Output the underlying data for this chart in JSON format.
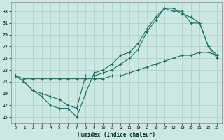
{
  "xlabel": "Humidex (Indice chaleur)",
  "bg_color": "#cce8e2",
  "grid_color": "#aacfc8",
  "line_color": "#1a7060",
  "xlim": [
    -0.5,
    23.5
  ],
  "ylim": [
    14.0,
    34.5
  ],
  "xticks": [
    0,
    1,
    2,
    3,
    4,
    5,
    6,
    7,
    8,
    9,
    10,
    11,
    12,
    13,
    14,
    15,
    16,
    17,
    18,
    19,
    20,
    21,
    22,
    23
  ],
  "yticks": [
    15,
    17,
    19,
    21,
    23,
    25,
    27,
    29,
    31,
    33
  ],
  "line1_x": [
    0,
    1,
    2,
    3,
    4,
    5,
    6,
    7,
    8,
    9,
    10,
    11,
    12,
    13,
    14,
    15,
    16,
    17,
    18,
    19,
    20,
    21,
    22,
    23
  ],
  "line1_y": [
    22.0,
    21.0,
    19.5,
    18.5,
    17.0,
    16.5,
    16.5,
    15.0,
    19.0,
    22.5,
    23.0,
    24.0,
    25.5,
    26.0,
    27.5,
    30.0,
    32.0,
    33.5,
    33.0,
    33.0,
    31.0,
    31.0,
    27.0,
    25.5
  ],
  "line2_x": [
    0,
    1,
    2,
    3,
    4,
    5,
    6,
    7,
    8,
    9,
    10,
    11,
    12,
    13,
    14,
    15,
    16,
    17,
    18,
    19,
    20,
    21,
    22,
    23
  ],
  "line2_y": [
    22.0,
    21.0,
    19.5,
    19.0,
    18.5,
    18.0,
    17.0,
    16.5,
    22.0,
    22.0,
    22.5,
    23.0,
    24.0,
    25.0,
    26.5,
    29.5,
    31.5,
    33.5,
    33.5,
    32.5,
    32.0,
    31.0,
    27.0,
    25.0
  ],
  "line3_x": [
    0,
    1,
    2,
    3,
    4,
    5,
    6,
    7,
    8,
    9,
    10,
    11,
    12,
    13,
    14,
    15,
    16,
    17,
    18,
    19,
    20,
    21,
    22,
    23
  ],
  "line3_y": [
    22.0,
    21.5,
    21.5,
    21.5,
    21.5,
    21.5,
    21.5,
    21.5,
    21.5,
    21.5,
    21.5,
    22.0,
    22.0,
    22.5,
    23.0,
    23.5,
    24.0,
    24.5,
    25.0,
    25.5,
    25.5,
    26.0,
    26.0,
    25.5
  ]
}
